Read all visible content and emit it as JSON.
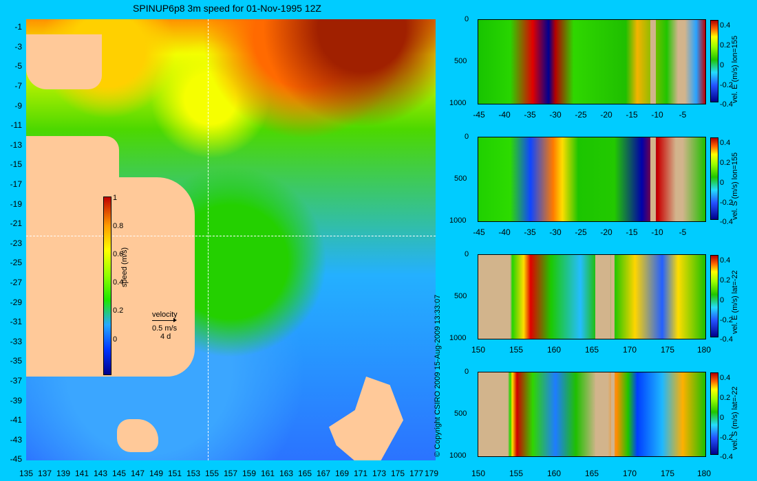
{
  "title": "SPINUP6p8 3m speed for 01-Nov-1995 12Z",
  "map": {
    "y_axis_labels": [
      "-1",
      "-3",
      "-5",
      "-7",
      "-9",
      "-11",
      "-13",
      "-15",
      "-17",
      "-19",
      "-21",
      "-23",
      "-25",
      "-27",
      "-29",
      "-31",
      "-33",
      "-35",
      "-37",
      "-39",
      "-41",
      "-43",
      "-45"
    ],
    "x_axis_labels": [
      "135",
      "137",
      "139",
      "141",
      "143",
      "145",
      "147",
      "149",
      "151",
      "153",
      "155",
      "157",
      "159",
      "161",
      "163",
      "165",
      "167",
      "169",
      "171",
      "173",
      "175",
      "177",
      "179"
    ],
    "colorbar_title": "speed (m/s)",
    "colorbar_ticks": [
      "1",
      "0.8",
      "0.6",
      "0.4",
      "0.2",
      "0"
    ],
    "velocity_key": {
      "label": "velocity",
      "speed": "0.5 m/s",
      "duration": "4 d"
    },
    "copyright": "© Copyright CSIRO 2009  15-Aug-2009 13:33:07"
  },
  "panels": [
    {
      "label": "vel. E (m/s) lon=155",
      "y_ticks": [
        "0",
        "500",
        "1000"
      ],
      "x_ticks": [
        "-45",
        "-40",
        "-35",
        "-30",
        "-25",
        "-20",
        "-15",
        "-10",
        "-5"
      ],
      "colorbar_ticks": [
        "0.4",
        "0.2",
        "0",
        "-0.2",
        "-0.4"
      ]
    },
    {
      "label": "vel. S (m/s) lon=155",
      "y_ticks": [
        "0",
        "500",
        "1000"
      ],
      "x_ticks": [
        "-45",
        "-40",
        "-35",
        "-30",
        "-25",
        "-20",
        "-15",
        "-10",
        "-5"
      ],
      "colorbar_ticks": [
        "0.4",
        "0.2",
        "0",
        "-0.2",
        "-0.4"
      ]
    },
    {
      "label": "vel. E (m/s) lat=-22",
      "y_ticks": [
        "0",
        "500",
        "1000"
      ],
      "x_ticks": [
        "150",
        "155",
        "160",
        "165",
        "170",
        "175",
        "180"
      ],
      "colorbar_ticks": [
        "0.4",
        "0.2",
        "0",
        "-0.2",
        "-0.4"
      ]
    },
    {
      "label": "vel. S (m/s) lat=-22",
      "y_ticks": [
        "0",
        "500",
        "1000"
      ],
      "x_ticks": [
        "150",
        "155",
        "160",
        "165",
        "170",
        "175",
        "180"
      ],
      "colorbar_ticks": [
        "0.4",
        "0.2",
        "0",
        "-0.2",
        "-0.4"
      ]
    }
  ],
  "colors": {
    "background": "#00ccff",
    "land": "#ffc999",
    "section_land": "#d2b48c"
  }
}
